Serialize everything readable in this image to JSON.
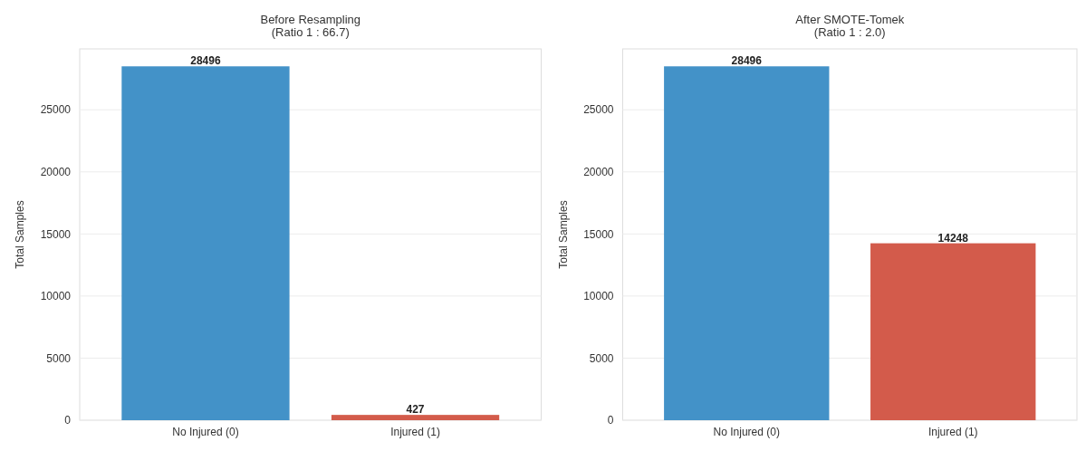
{
  "chart_data": [
    {
      "type": "bar",
      "title": "Before Resampling\n(Ratio 1 : 66.7)",
      "ylabel": "Total Samples",
      "categories": [
        "No Injured (0)",
        "Injured (1)"
      ],
      "values": [
        28496,
        427
      ],
      "colors": [
        "#4392c8",
        "#d35b4b"
      ],
      "ylim": [
        0,
        29900
      ],
      "yticks": [
        0,
        5000,
        10000,
        15000,
        20000,
        25000
      ],
      "grid": "y",
      "data_labels": true
    },
    {
      "type": "bar",
      "title": "After SMOTE-Tomek\n(Ratio 1 : 2.0)",
      "ylabel": "Total Samples",
      "categories": [
        "No Injured (0)",
        "Injured (1)"
      ],
      "values": [
        28496,
        14248
      ],
      "colors": [
        "#4392c8",
        "#d35b4b"
      ],
      "ylim": [
        0,
        29900
      ],
      "yticks": [
        0,
        5000,
        10000,
        15000,
        20000,
        25000
      ],
      "grid": "y",
      "data_labels": true
    }
  ]
}
